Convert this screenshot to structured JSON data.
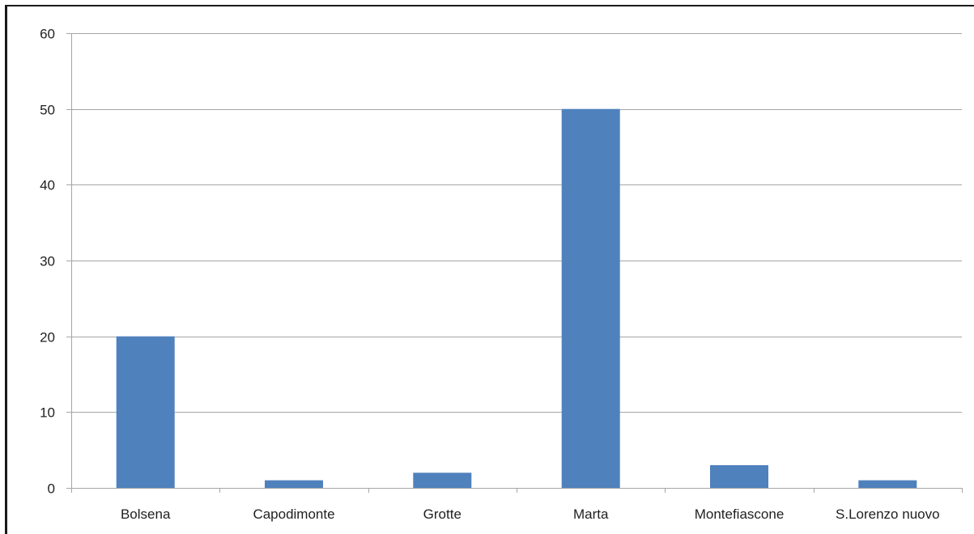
{
  "chart_data": {
    "type": "bar",
    "categories": [
      "Bolsena",
      "Capodimonte",
      "Grotte",
      "Marta",
      "Montefiascone",
      "S.Lorenzo nuovo"
    ],
    "values": [
      20,
      1,
      2,
      50,
      3,
      1
    ],
    "ylim": [
      0,
      60
    ],
    "yticks": [
      0,
      10,
      20,
      30,
      40,
      50,
      60
    ],
    "grid": true,
    "legend": "none",
    "bar_color": "#4f81bd",
    "grid_color": "#a6a6a6"
  }
}
